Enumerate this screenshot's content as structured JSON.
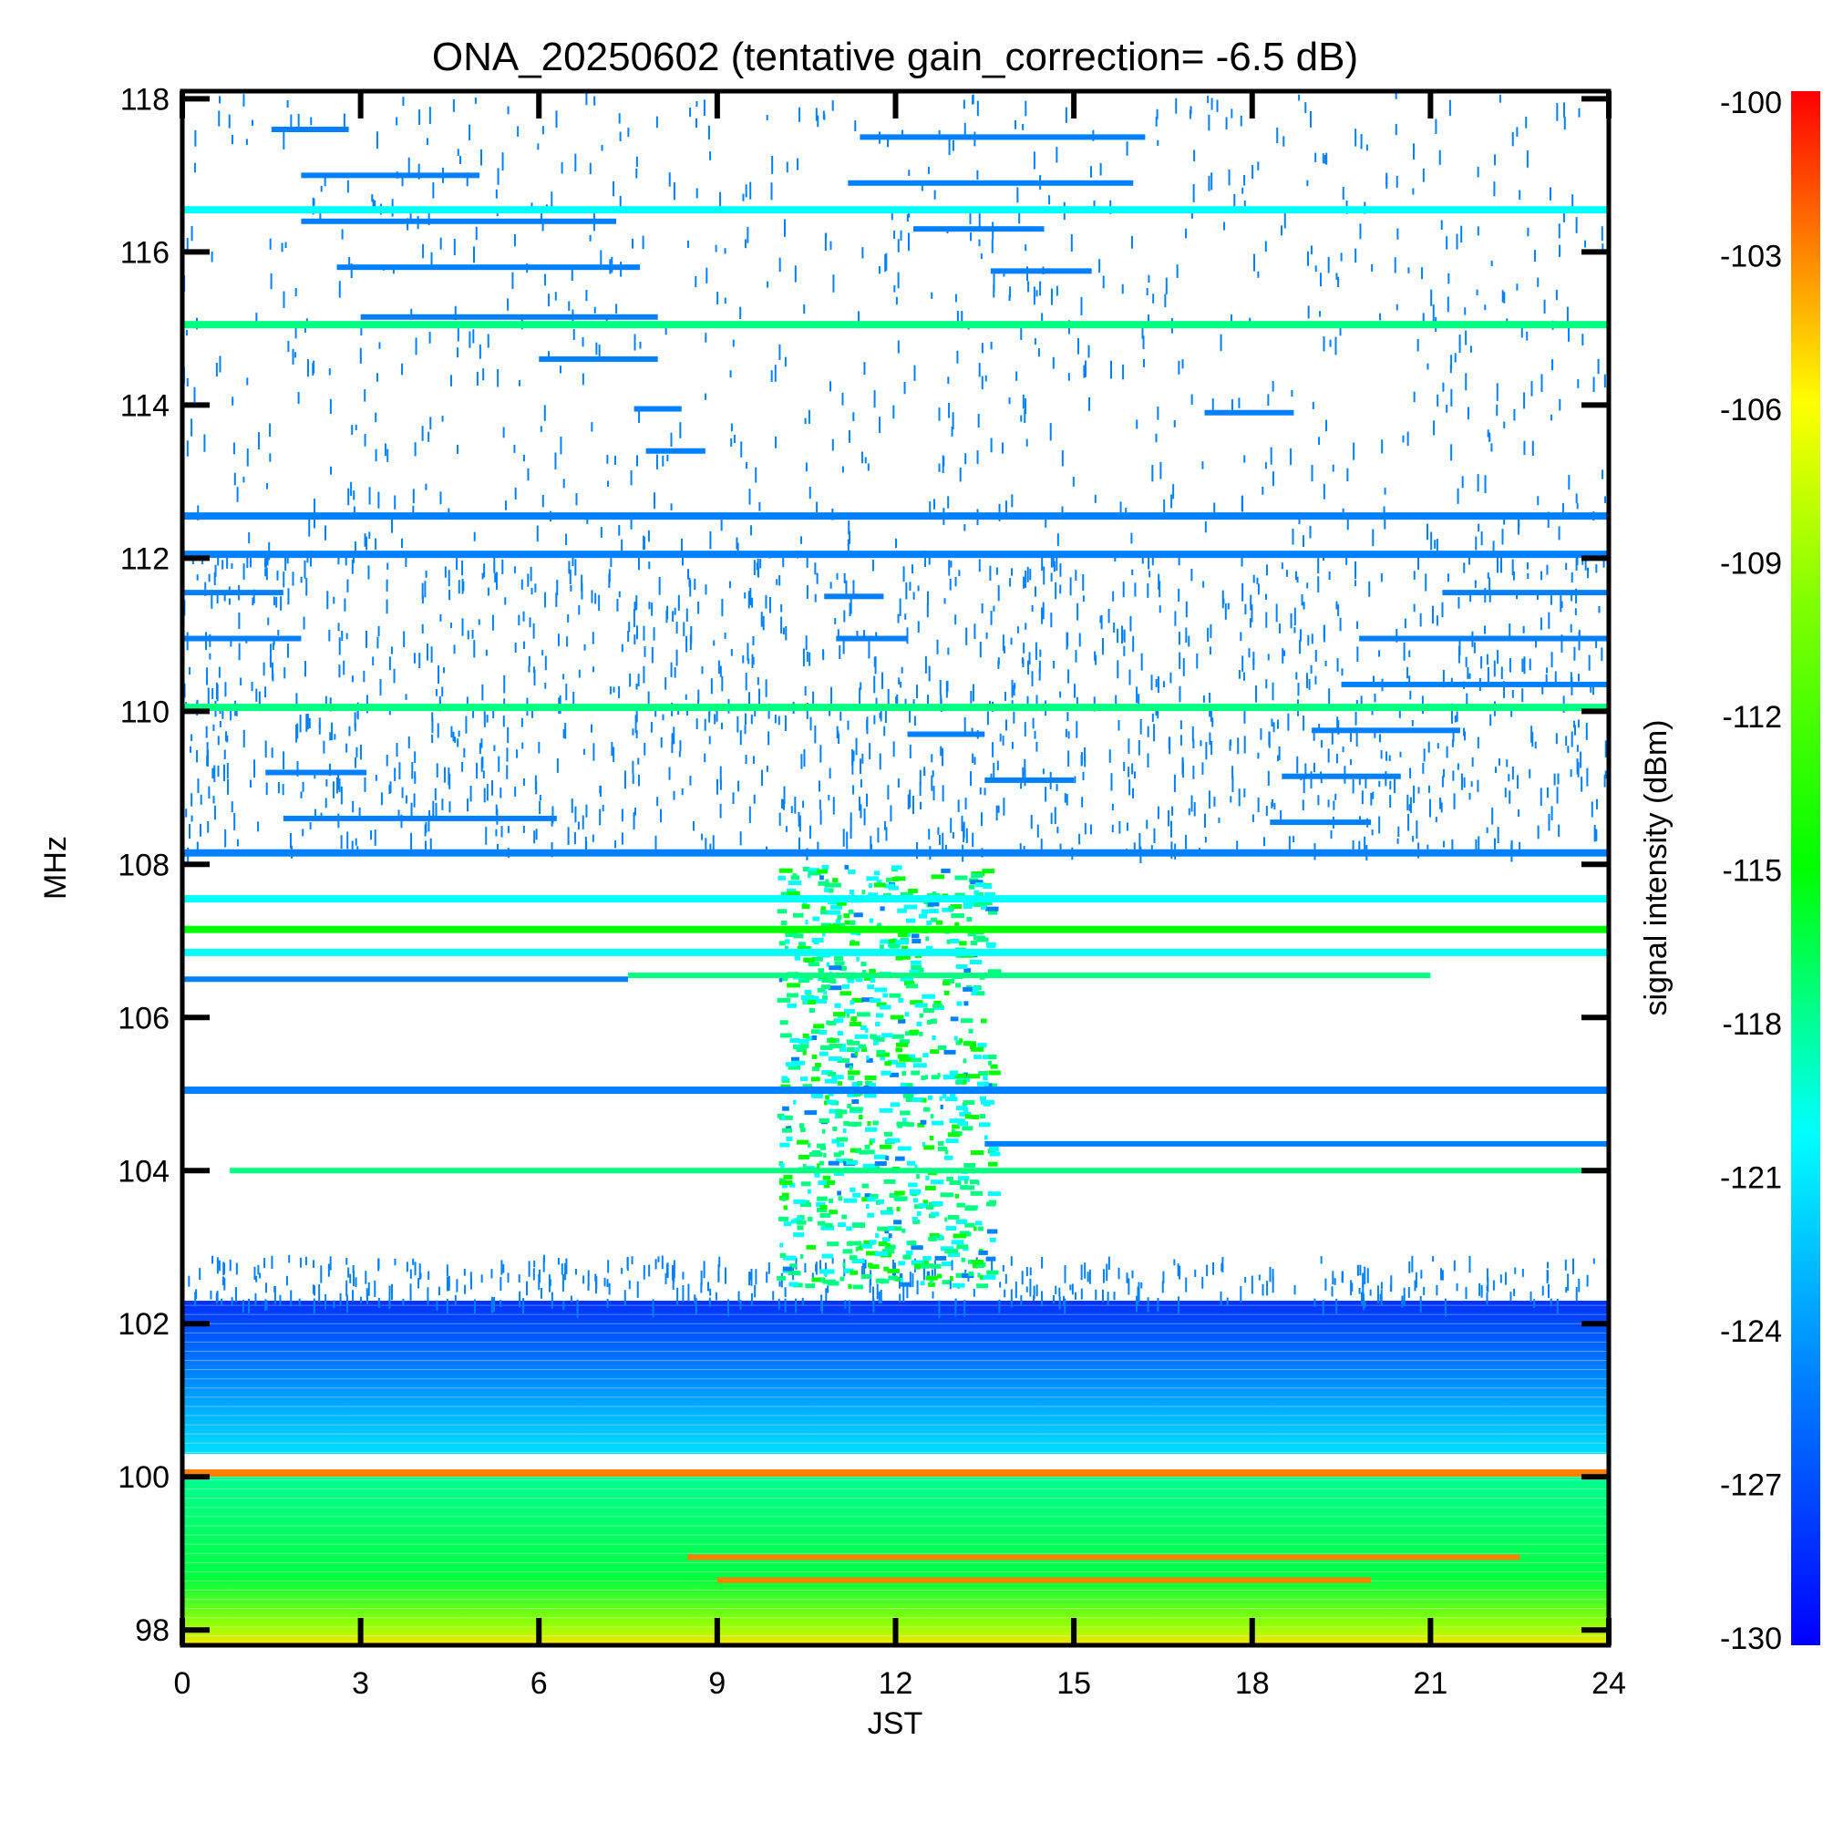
{
  "chart_data": {
    "type": "heatmap",
    "title": "ONA_20250602 (tentative gain_correction= -6.5 dB)",
    "xlabel": "JST",
    "ylabel": "MHz",
    "colorbar_label": "signal intensity (dBm)",
    "xlim": [
      0,
      24
    ],
    "ylim": [
      97.8,
      118.1
    ],
    "x_ticks": [
      "0",
      "3",
      "6",
      "9",
      "12",
      "15",
      "18",
      "21",
      "24"
    ],
    "y_ticks": [
      "98",
      "100",
      "102",
      "104",
      "106",
      "108",
      "110",
      "112",
      "114",
      "116",
      "118"
    ],
    "colorbar_ticks": [
      "-100",
      "-103",
      "-106",
      "-109",
      "-112",
      "-115",
      "-118",
      "-121",
      "-124",
      "-127",
      "-130"
    ],
    "color_range_dbm": [
      -130,
      -100
    ],
    "colormap": [
      "#0000ff",
      "#0080ff",
      "#00ffff",
      "#00ff80",
      "#00ff00",
      "#80ff00",
      "#ffff00",
      "#ff8000",
      "#ff0000"
    ],
    "continuous_bands": [
      {
        "freq": 116.55,
        "level": -124
      },
      {
        "freq": 115.05,
        "level": -119
      },
      {
        "freq": 112.55,
        "level": -127
      },
      {
        "freq": 112.05,
        "level": -125
      },
      {
        "freq": 110.05,
        "level": -119
      },
      {
        "freq": 108.15,
        "level": -128
      },
      {
        "freq": 107.55,
        "level": -124
      },
      {
        "freq": 107.15,
        "level": -116
      },
      {
        "freq": 106.85,
        "level": -124
      },
      {
        "freq": 105.05,
        "level": -127
      },
      {
        "freq": 100.05,
        "level": -102
      }
    ],
    "segments": [
      {
        "freq": 117.6,
        "x0": 1.5,
        "x1": 2.8,
        "level": -126
      },
      {
        "freq": 117.0,
        "x0": 2.0,
        "x1": 5.0,
        "level": -127
      },
      {
        "freq": 116.4,
        "x0": 2.0,
        "x1": 7.3,
        "level": -128
      },
      {
        "freq": 115.8,
        "x0": 2.6,
        "x1": 7.7,
        "level": -127
      },
      {
        "freq": 115.15,
        "x0": 3.0,
        "x1": 8.0,
        "level": -127
      },
      {
        "freq": 114.6,
        "x0": 6.0,
        "x1": 8.0,
        "level": -126
      },
      {
        "freq": 113.95,
        "x0": 7.6,
        "x1": 8.4,
        "level": -127
      },
      {
        "freq": 113.4,
        "x0": 7.8,
        "x1": 8.8,
        "level": -128
      },
      {
        "freq": 117.5,
        "x0": 11.4,
        "x1": 16.2,
        "level": -127
      },
      {
        "freq": 116.9,
        "x0": 11.2,
        "x1": 16.0,
        "level": -127
      },
      {
        "freq": 116.3,
        "x0": 12.3,
        "x1": 14.5,
        "level": -126
      },
      {
        "freq": 115.75,
        "x0": 13.6,
        "x1": 15.3,
        "level": -127
      },
      {
        "freq": 113.9,
        "x0": 17.2,
        "x1": 18.7,
        "level": -126
      },
      {
        "freq": 111.55,
        "x0": 0.0,
        "x1": 1.7,
        "level": -128
      },
      {
        "freq": 110.95,
        "x0": 0.0,
        "x1": 2.0,
        "level": -128
      },
      {
        "freq": 111.55,
        "x0": 21.2,
        "x1": 24.0,
        "level": -128
      },
      {
        "freq": 110.95,
        "x0": 19.8,
        "x1": 24.0,
        "level": -128
      },
      {
        "freq": 110.35,
        "x0": 19.5,
        "x1": 24.0,
        "level": -128
      },
      {
        "freq": 109.2,
        "x0": 1.4,
        "x1": 3.1,
        "level": -128
      },
      {
        "freq": 108.6,
        "x0": 1.7,
        "x1": 6.3,
        "level": -128
      },
      {
        "freq": 109.75,
        "x0": 19.0,
        "x1": 21.5,
        "level": -128
      },
      {
        "freq": 109.15,
        "x0": 18.5,
        "x1": 20.5,
        "level": -128
      },
      {
        "freq": 108.55,
        "x0": 18.3,
        "x1": 20.0,
        "level": -128
      },
      {
        "freq": 109.7,
        "x0": 12.2,
        "x1": 13.5,
        "level": -128
      },
      {
        "freq": 109.1,
        "x0": 13.5,
        "x1": 15.0,
        "level": -128
      },
      {
        "freq": 110.95,
        "x0": 11.0,
        "x1": 12.2,
        "level": -128
      },
      {
        "freq": 111.5,
        "x0": 10.8,
        "x1": 11.8,
        "level": -128
      },
      {
        "freq": 104.0,
        "x0": 0.8,
        "x1": 24.0,
        "level": -117
      },
      {
        "freq": 104.35,
        "x0": 13.5,
        "x1": 24.0,
        "level": -128
      },
      {
        "freq": 106.5,
        "x0": 0.0,
        "x1": 7.5,
        "level": -128
      },
      {
        "freq": 106.55,
        "x0": 7.5,
        "x1": 21.0,
        "level": -120
      },
      {
        "freq": 98.95,
        "x0": 8.5,
        "x1": 22.5,
        "level": -103
      },
      {
        "freq": 98.65,
        "x0": 9.0,
        "x1": 20.0,
        "level": -104
      }
    ],
    "noise_floor_bands": [
      {
        "from": 100.3,
        "to": 102.3,
        "level_top": -128,
        "level_bottom": -124
      },
      {
        "from": 97.8,
        "to": 100.0,
        "level_top": -120,
        "level_bottom": -114
      }
    ],
    "burst_region": {
      "x0": 10.0,
      "x1": 13.6,
      "freq_from": 102.5,
      "freq_to": 108.0,
      "level": -120
    }
  }
}
